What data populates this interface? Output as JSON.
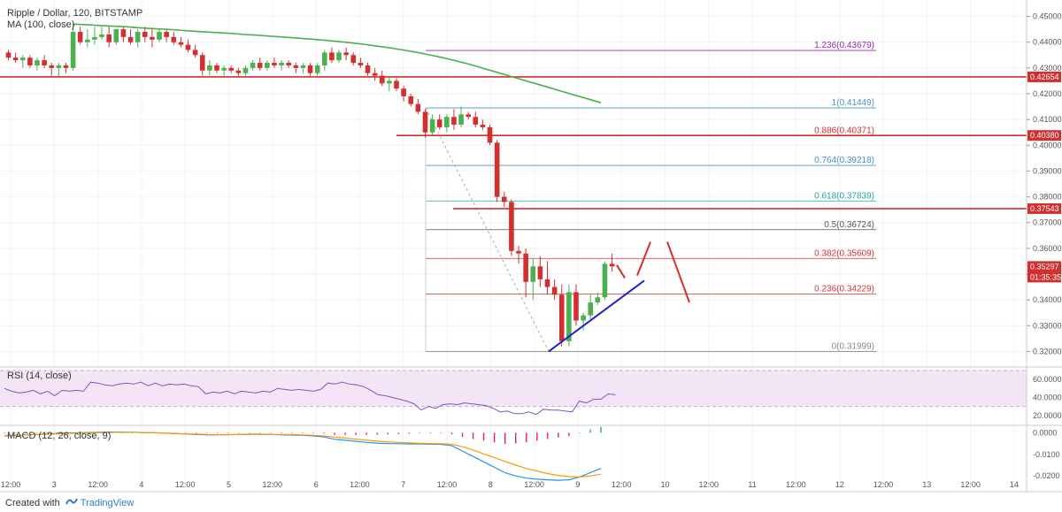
{
  "title": "Ripple / Dollar, 120, BITSTAMP",
  "footer": {
    "created_with": "Created with",
    "brand": "TradingView"
  },
  "colors": {
    "up": "#4caf50",
    "down": "#d32f2f",
    "ma": "#4caf50",
    "rsi": "#7e57c2",
    "macd": "#2196f3",
    "signal": "#ff9800",
    "hist_neg": "#e91e63",
    "resistance": "#d32f2f",
    "trend": "#1e22c8",
    "fib": "#aaaaaa"
  },
  "chart_data": [
    {
      "type": "candlestick",
      "pane": "price",
      "indicator_label": "MA (100, close)",
      "ylim": [
        0.315,
        0.455
      ],
      "y_ticks": [
        "0.45000",
        "0.44000",
        "0.43000",
        "0.42000",
        "0.41000",
        "0.40000",
        "0.39000",
        "0.38000",
        "0.37000",
        "0.36000",
        "0.35000",
        "0.34000",
        "0.33000",
        "0.32000"
      ],
      "last_price": "0.35297",
      "countdown": "01:35:35",
      "horizontal_lines": [
        {
          "value": 0.42654,
          "label": "0.42654"
        },
        {
          "value": 0.4038,
          "label": "0.40380"
        },
        {
          "value": 0.37543,
          "label": "0.37543"
        }
      ],
      "fibonacci": [
        {
          "ratio": "1.236",
          "value": 0.43679,
          "color": "#9c27b0"
        },
        {
          "ratio": "1",
          "value": 0.41449,
          "color": "#4a90c2"
        },
        {
          "ratio": "0.886",
          "value": 0.40371,
          "color": "#d32f2f"
        },
        {
          "ratio": "0.764",
          "value": 0.39218,
          "color": "#4a90c2"
        },
        {
          "ratio": "0.618",
          "value": 0.37839,
          "color": "#26a69a"
        },
        {
          "ratio": "0.5",
          "value": 0.36724,
          "color": "#555555"
        },
        {
          "ratio": "0.382",
          "value": 0.35609,
          "color": "#d32f2f"
        },
        {
          "ratio": "0.236",
          "value": 0.34229,
          "color": "#d32f2f"
        },
        {
          "ratio": "0",
          "value": 0.31999,
          "color": "#888888"
        }
      ],
      "candles": [
        [
          0.436,
          0.437,
          0.433,
          0.434
        ],
        [
          0.434,
          0.436,
          0.432,
          0.433
        ],
        [
          0.433,
          0.435,
          0.43,
          0.434
        ],
        [
          0.434,
          0.435,
          0.43,
          0.431
        ],
        [
          0.431,
          0.434,
          0.429,
          0.433
        ],
        [
          0.433,
          0.435,
          0.43,
          0.431
        ],
        [
          0.431,
          0.432,
          0.427,
          0.43
        ],
        [
          0.43,
          0.432,
          0.426,
          0.431
        ],
        [
          0.431,
          0.432,
          0.428,
          0.43
        ],
        [
          0.43,
          0.447,
          0.429,
          0.444
        ],
        [
          0.444,
          0.446,
          0.439,
          0.44
        ],
        [
          0.44,
          0.445,
          0.438,
          0.441
        ],
        [
          0.441,
          0.446,
          0.439,
          0.442
        ],
        [
          0.442,
          0.446,
          0.441,
          0.443
        ],
        [
          0.443,
          0.446,
          0.438,
          0.44
        ],
        [
          0.44,
          0.445,
          0.439,
          0.445
        ],
        [
          0.445,
          0.446,
          0.44,
          0.442
        ],
        [
          0.442,
          0.445,
          0.439,
          0.44
        ],
        [
          0.44,
          0.445,
          0.438,
          0.444
        ],
        [
          0.444,
          0.446,
          0.44,
          0.442
        ],
        [
          0.442,
          0.445,
          0.438,
          0.441
        ],
        [
          0.441,
          0.445,
          0.44,
          0.444
        ],
        [
          0.444,
          0.445,
          0.44,
          0.442
        ],
        [
          0.442,
          0.444,
          0.439,
          0.44
        ],
        [
          0.44,
          0.442,
          0.438,
          0.439
        ],
        [
          0.439,
          0.441,
          0.436,
          0.437
        ],
        [
          0.437,
          0.439,
          0.434,
          0.435
        ],
        [
          0.435,
          0.436,
          0.427,
          0.429
        ],
        [
          0.429,
          0.433,
          0.427,
          0.431
        ],
        [
          0.431,
          0.432,
          0.428,
          0.429
        ],
        [
          0.429,
          0.431,
          0.427,
          0.43
        ],
        [
          0.43,
          0.431,
          0.428,
          0.429
        ],
        [
          0.429,
          0.43,
          0.427,
          0.428
        ],
        [
          0.428,
          0.431,
          0.427,
          0.43
        ],
        [
          0.43,
          0.433,
          0.429,
          0.432
        ],
        [
          0.432,
          0.434,
          0.429,
          0.43
        ],
        [
          0.43,
          0.433,
          0.429,
          0.432
        ],
        [
          0.432,
          0.434,
          0.43,
          0.431
        ],
        [
          0.431,
          0.433,
          0.429,
          0.432
        ],
        [
          0.432,
          0.433,
          0.43,
          0.431
        ],
        [
          0.431,
          0.432,
          0.428,
          0.43
        ],
        [
          0.43,
          0.432,
          0.428,
          0.431
        ],
        [
          0.431,
          0.432,
          0.427,
          0.428
        ],
        [
          0.428,
          0.432,
          0.427,
          0.431
        ],
        [
          0.431,
          0.437,
          0.429,
          0.436
        ],
        [
          0.436,
          0.438,
          0.432,
          0.433
        ],
        [
          0.433,
          0.437,
          0.432,
          0.436
        ],
        [
          0.436,
          0.438,
          0.433,
          0.435
        ],
        [
          0.435,
          0.436,
          0.431,
          0.432
        ],
        [
          0.432,
          0.434,
          0.43,
          0.431
        ],
        [
          0.431,
          0.432,
          0.427,
          0.428
        ],
        [
          0.428,
          0.43,
          0.425,
          0.427
        ],
        [
          0.427,
          0.429,
          0.423,
          0.424
        ],
        [
          0.424,
          0.427,
          0.421,
          0.425
        ],
        [
          0.425,
          0.426,
          0.421,
          0.422
        ],
        [
          0.422,
          0.423,
          0.417,
          0.419
        ],
        [
          0.419,
          0.42,
          0.415,
          0.416
        ],
        [
          0.416,
          0.418,
          0.412,
          0.413
        ],
        [
          0.413,
          0.414,
          0.403,
          0.405
        ],
        [
          0.405,
          0.412,
          0.404,
          0.41
        ],
        [
          0.41,
          0.412,
          0.406,
          0.407
        ],
        [
          0.407,
          0.412,
          0.405,
          0.411
        ],
        [
          0.411,
          0.414,
          0.406,
          0.408
        ],
        [
          0.408,
          0.415,
          0.407,
          0.412
        ],
        [
          0.412,
          0.413,
          0.41,
          0.411
        ],
        [
          0.411,
          0.413,
          0.407,
          0.408
        ],
        [
          0.408,
          0.41,
          0.406,
          0.407
        ],
        [
          0.407,
          0.408,
          0.4,
          0.401
        ],
        [
          0.401,
          0.402,
          0.378,
          0.38
        ],
        [
          0.38,
          0.382,
          0.376,
          0.378
        ],
        [
          0.378,
          0.379,
          0.357,
          0.359
        ],
        [
          0.359,
          0.361,
          0.354,
          0.358
        ],
        [
          0.358,
          0.36,
          0.341,
          0.347
        ],
        [
          0.347,
          0.356,
          0.34,
          0.353
        ],
        [
          0.353,
          0.357,
          0.345,
          0.348
        ],
        [
          0.348,
          0.355,
          0.342,
          0.345
        ],
        [
          0.345,
          0.348,
          0.34,
          0.342
        ],
        [
          0.342,
          0.346,
          0.322,
          0.324
        ],
        [
          0.324,
          0.346,
          0.322,
          0.343
        ],
        [
          0.343,
          0.346,
          0.33,
          0.332
        ],
        [
          0.332,
          0.335,
          0.328,
          0.334
        ],
        [
          0.334,
          0.342,
          0.332,
          0.339
        ],
        [
          0.339,
          0.343,
          0.338,
          0.341
        ],
        [
          0.341,
          0.355,
          0.34,
          0.354
        ],
        [
          0.354,
          0.358,
          0.351,
          0.353
        ]
      ],
      "ma100": [
        0.447,
        0.4468,
        0.4465,
        0.4462,
        0.446,
        0.4456,
        0.4453,
        0.445,
        0.4447,
        0.4443,
        0.444,
        0.4437,
        0.4434,
        0.443,
        0.4427,
        0.4423,
        0.442,
        0.4416,
        0.4412,
        0.4408,
        0.4403,
        0.4398,
        0.4392,
        0.4385,
        0.4378,
        0.437,
        0.4361,
        0.4351,
        0.434,
        0.4328,
        0.4315,
        0.43,
        0.4285,
        0.427,
        0.4255,
        0.424,
        0.4225,
        0.421,
        0.4195,
        0.418,
        0.4165
      ],
      "ma100_start_index": 9
    },
    {
      "type": "line",
      "pane": "rsi",
      "indicator_label": "RSI (14, close)",
      "ylim": [
        10,
        70
      ],
      "y_ticks": [
        "60.0000",
        "40.0000",
        "20.0000"
      ],
      "band": [
        30,
        70
      ],
      "values": [
        50,
        47,
        45,
        46,
        48,
        44,
        47,
        42,
        48,
        47,
        48,
        47,
        57,
        56,
        54,
        53,
        55,
        56,
        55,
        57,
        53,
        56,
        53,
        55,
        54,
        55,
        53,
        52,
        44,
        46,
        45,
        47,
        44,
        47,
        46,
        45,
        47,
        46,
        50,
        49,
        48,
        49,
        48,
        47,
        49,
        56,
        55,
        57,
        55,
        54,
        52,
        48,
        43,
        42,
        40,
        38,
        36,
        33,
        26,
        30,
        28,
        32,
        33,
        32,
        34,
        33,
        32,
        31,
        28,
        24,
        25,
        22,
        22,
        24,
        21,
        27,
        26,
        26,
        25,
        24,
        36,
        34,
        38,
        38,
        44,
        43
      ]
    },
    {
      "type": "macd",
      "pane": "macd",
      "indicator_label": "MACD (12, 26, close, 9)",
      "ylim": [
        -0.024,
        0.003
      ],
      "y_ticks": [
        "0.0000",
        "-0.0100",
        "-0.0200"
      ],
      "macd": [
        -0.0015,
        -0.0012,
        -0.001,
        -0.0008,
        -0.0005,
        -0.0003,
        -0.0001,
        0.0,
        0.0001,
        0.0002,
        0.0003,
        0.0003,
        0.0002,
        0.0001,
        0.0,
        -0.0002,
        -0.0004,
        -0.0006,
        -0.0008,
        -0.001,
        -0.001,
        -0.0009,
        -0.0008,
        -0.0007,
        -0.0007,
        -0.0008,
        -0.001,
        -0.0011,
        -0.0012,
        -0.0015,
        -0.002,
        -0.003,
        -0.0035,
        -0.004,
        -0.0045,
        -0.0048,
        -0.005,
        -0.0051,
        -0.0052,
        -0.0052,
        -0.0053,
        -0.0054,
        -0.006,
        -0.0085,
        -0.011,
        -0.0135,
        -0.016,
        -0.0185,
        -0.02,
        -0.021,
        -0.0215,
        -0.0218,
        -0.022,
        -0.0218,
        -0.0205,
        -0.0185,
        -0.0165
      ],
      "signal": [
        -0.0013,
        -0.0012,
        -0.0011,
        -0.0009,
        -0.0007,
        -0.0005,
        -0.0003,
        -0.0002,
        -0.0001,
        0.0,
        0.0001,
        0.0002,
        0.0002,
        0.0001,
        0.0,
        -0.0001,
        -0.0003,
        -0.0005,
        -0.0006,
        -0.0008,
        -0.0009,
        -0.0009,
        -0.0009,
        -0.0008,
        -0.0008,
        -0.0008,
        -0.0008,
        -0.0009,
        -0.001,
        -0.0012,
        -0.0015,
        -0.002,
        -0.0025,
        -0.003,
        -0.0035,
        -0.0039,
        -0.0042,
        -0.0045,
        -0.0047,
        -0.0049,
        -0.005,
        -0.0051,
        -0.0053,
        -0.0065,
        -0.008,
        -0.0098,
        -0.0115,
        -0.0133,
        -0.015,
        -0.0165,
        -0.0178,
        -0.0189,
        -0.0198,
        -0.0203,
        -0.0205,
        -0.02,
        -0.0192
      ]
    }
  ],
  "x_axis_labels": [
    "12:00",
    "3",
    "12:00",
    "4",
    "12:00",
    "5",
    "12:00",
    "6",
    "12:00",
    "7",
    "12:00",
    "8",
    "12:00",
    "9",
    "12:00",
    "10",
    "12:00",
    "11",
    "12:00",
    "12",
    "12:00",
    "13",
    "12:00",
    "14"
  ]
}
